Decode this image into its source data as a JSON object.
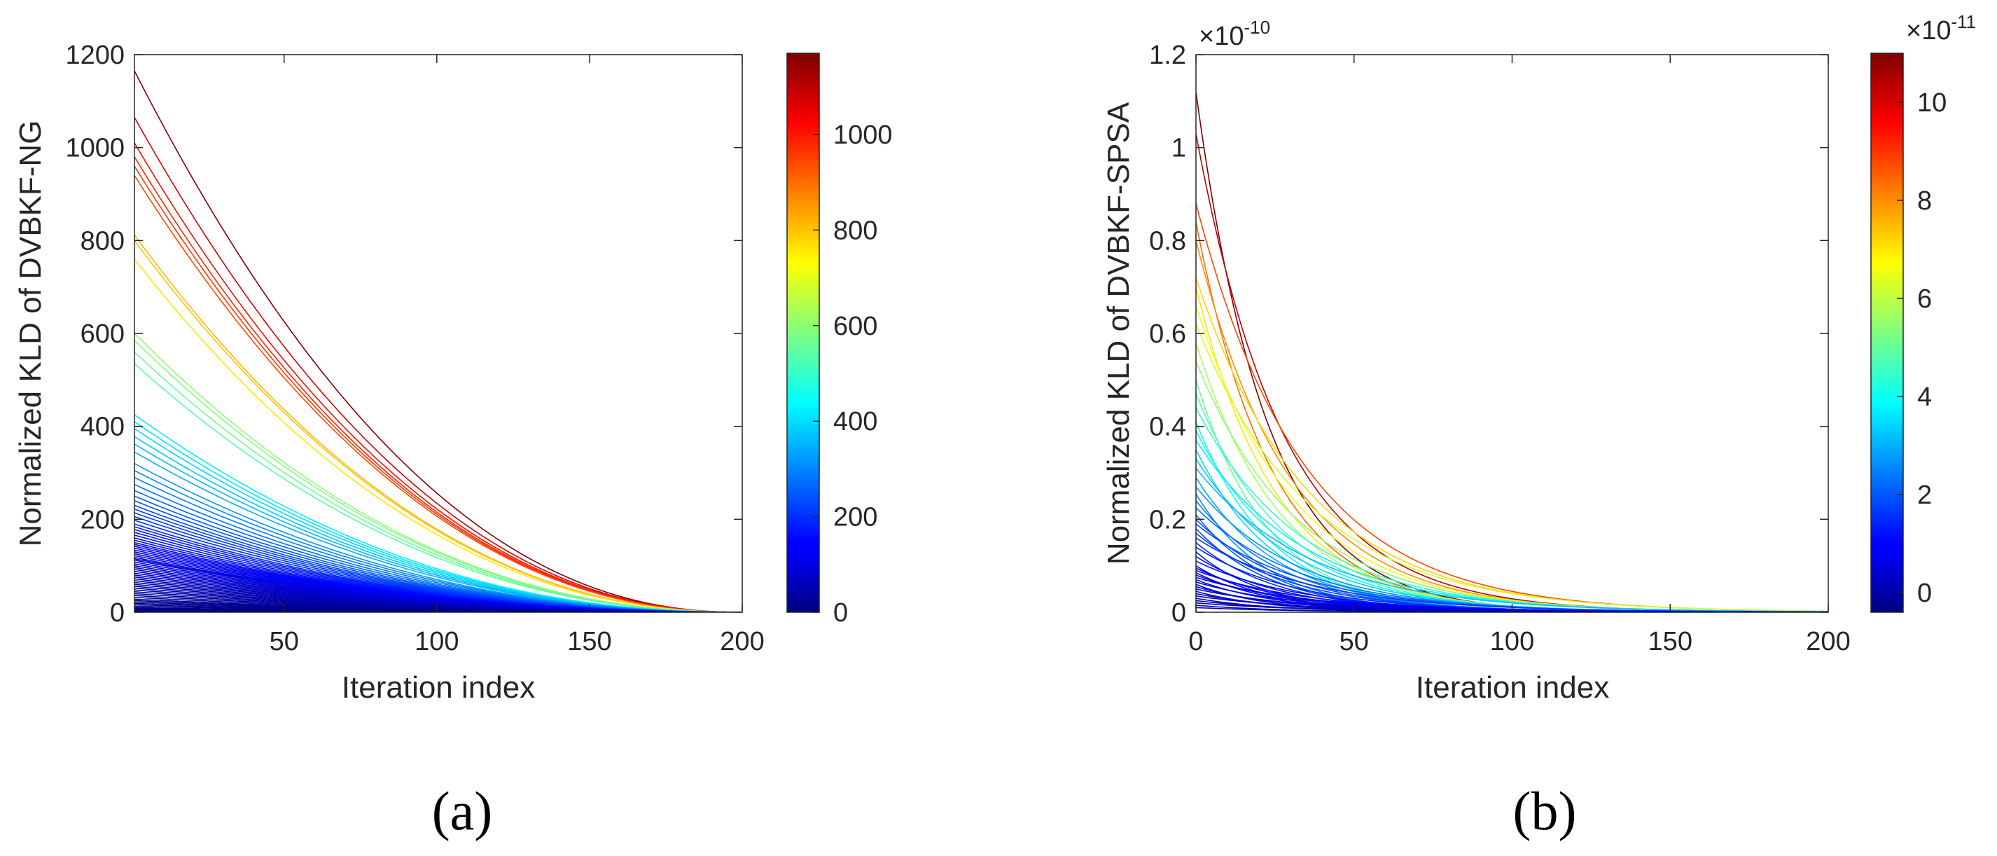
{
  "chart_data": [
    {
      "type": "line",
      "panel_label": "(a)",
      "title": "",
      "xlabel": "Iteration index",
      "ylabel": "Normalized KLD of DVBKF-NG",
      "xlim": [
        1,
        200
      ],
      "ylim": [
        0,
        1200
      ],
      "xticks": [
        50,
        100,
        150,
        200
      ],
      "xtick_labels": [
        "50",
        "100",
        "150",
        "200"
      ],
      "yticks": [
        0,
        200,
        400,
        600,
        800,
        1000,
        1200
      ],
      "ytick_labels": [
        "0",
        "200",
        "400",
        "600",
        "800",
        "1000",
        "1200"
      ],
      "y_exponent": "",
      "colorbar": {
        "colormap": "jet",
        "range": [
          0,
          1170
        ],
        "ticks": [
          0,
          200,
          400,
          600,
          800,
          1000
        ],
        "tick_labels": [
          "0",
          "200",
          "400",
          "600",
          "800",
          "1000"
        ],
        "exponent": ""
      },
      "curve_model": {
        "form": "power-decay",
        "end_iteration": 200,
        "exponent": 2.2
      },
      "series": [
        {
          "name": "trajectories (colored by initial KLD)",
          "initial_values": [
            1165,
            1065,
            1010,
            980,
            960,
            940,
            812,
            800,
            760,
            600,
            585,
            560,
            535,
            425,
            410,
            395,
            378,
            362,
            345,
            320,
            305,
            290,
            275,
            262,
            250,
            240,
            230,
            222,
            214,
            206,
            198,
            190,
            184,
            178,
            172,
            166,
            160,
            155,
            150,
            146,
            142,
            138,
            134,
            130,
            126,
            122,
            118,
            115,
            112,
            108,
            104,
            100,
            96,
            92,
            88,
            84,
            80,
            76,
            72,
            68,
            64,
            60,
            56,
            52,
            48,
            44,
            40,
            36,
            32,
            28,
            25,
            22,
            19,
            16,
            13,
            10,
            8,
            6,
            4,
            2
          ]
        }
      ]
    },
    {
      "type": "line",
      "panel_label": "(b)",
      "title": "",
      "xlabel": "Iteration index",
      "ylabel": "Normalized KLD of DVBKF-SPSA",
      "xlim": [
        0,
        200
      ],
      "ylim": [
        0,
        1.2
      ],
      "xticks": [
        0,
        50,
        100,
        150,
        200
      ],
      "xtick_labels": [
        "0",
        "50",
        "100",
        "150",
        "200"
      ],
      "yticks": [
        0,
        0.2,
        0.4,
        0.6,
        0.8,
        1,
        1.2
      ],
      "ytick_labels": [
        "0",
        "0.2",
        "0.4",
        "0.6",
        "0.8",
        "1",
        "1.2"
      ],
      "y_exponent": {
        "base": "×10",
        "power": "-10"
      },
      "colorbar": {
        "colormap": "jet",
        "range": [
          -0.4,
          11
        ],
        "ticks": [
          0,
          2,
          4,
          6,
          8,
          10
        ],
        "tick_labels": [
          "0",
          "2",
          "4",
          "6",
          "8",
          "10"
        ],
        "exponent": {
          "base": "×10",
          "power": "-11"
        }
      },
      "curve_model": {
        "form": "exponential-decay",
        "decay_constant_iterations": 28,
        "exponent_scale": 0.1
      },
      "series": [
        {
          "name": "trajectories (colored by initial KLD, ×10^-10)",
          "initial_values": [
            1.12,
            1.03,
            0.88,
            0.84,
            0.8,
            0.72,
            0.7,
            0.66,
            0.62,
            0.58,
            0.54,
            0.5,
            0.47,
            0.44,
            0.41,
            0.39,
            0.37,
            0.35,
            0.33,
            0.31,
            0.29,
            0.27,
            0.255,
            0.24,
            0.225,
            0.21,
            0.2,
            0.19,
            0.18,
            0.17,
            0.16,
            0.15,
            0.14,
            0.13,
            0.12,
            0.11,
            0.1,
            0.095,
            0.09,
            0.085,
            0.08,
            0.075,
            0.07,
            0.065,
            0.06,
            0.055,
            0.05,
            0.045,
            0.04,
            0.035,
            0.03,
            0.025,
            0.02,
            0.015,
            0.01
          ]
        }
      ]
    }
  ]
}
